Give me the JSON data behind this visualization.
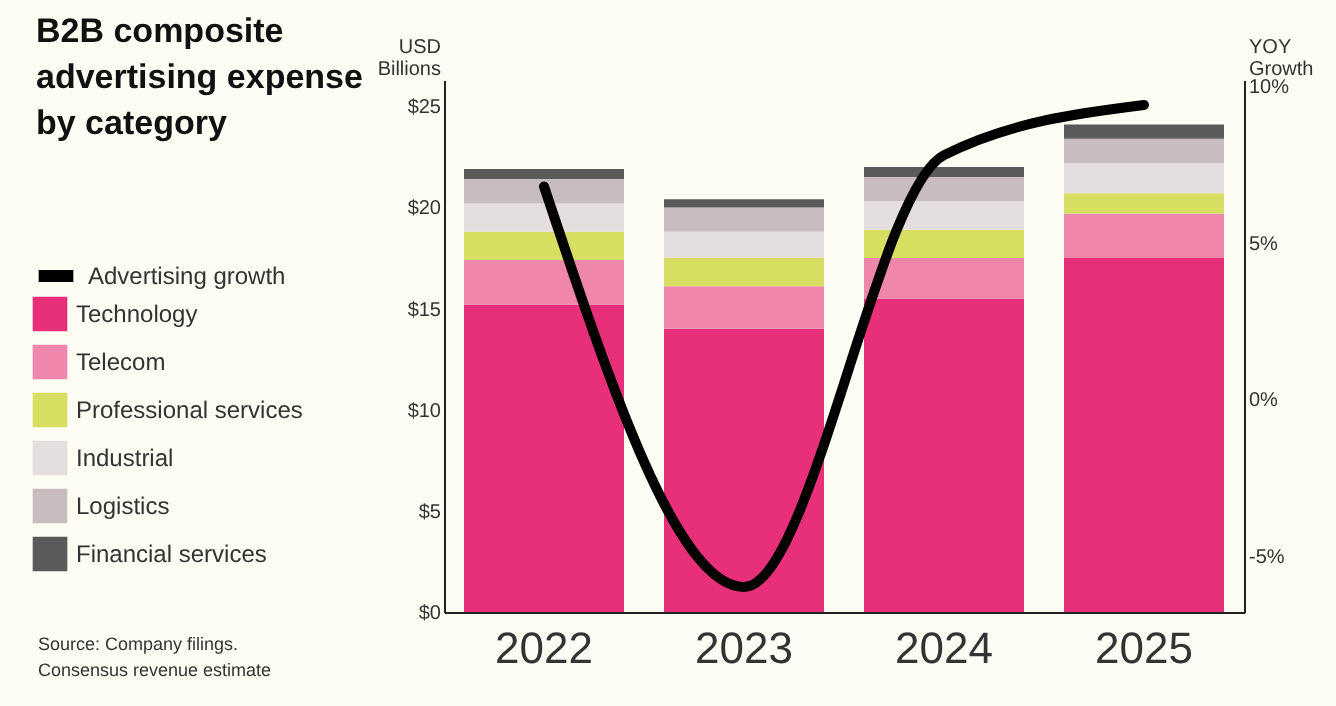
{
  "chart_data": {
    "type": "bar",
    "title": [
      "B2B composite",
      "advertising expense",
      "by category"
    ],
    "ylabel": [
      "USD",
      "Billions"
    ],
    "y2label": [
      "YOY",
      "Growth"
    ],
    "categories": [
      "2022",
      "2023",
      "2024",
      "2025"
    ],
    "stacked": true,
    "legend": "left",
    "marker": "none",
    "grid": false,
    "ylim": [
      0,
      26.3
    ],
    "yticks": [
      {
        "value": 0,
        "label": "$0"
      },
      {
        "value": 5,
        "label": "$5"
      },
      {
        "value": 10,
        "label": "$10"
      },
      {
        "value": 15,
        "label": "$15"
      },
      {
        "value": 20,
        "label": "$20"
      },
      {
        "value": 25,
        "label": "$25"
      }
    ],
    "y2lim": [
      -6.8,
      10.2
    ],
    "y2ticks": [
      {
        "value": -5,
        "label": "-5%"
      },
      {
        "value": 0,
        "label": "0%"
      },
      {
        "value": 5,
        "label": "5%"
      },
      {
        "value": 10,
        "label": "10%"
      }
    ],
    "series": [
      {
        "name": "Technology",
        "color": "#e8307a",
        "values": [
          15.2,
          14.0,
          15.5,
          17.5
        ]
      },
      {
        "name": "Telecom",
        "color": "#ef86ac",
        "values": [
          2.2,
          2.1,
          2.0,
          2.2
        ]
      },
      {
        "name": "Professional services",
        "color": "#d8de62",
        "values": [
          1.4,
          1.4,
          1.4,
          1.0
        ]
      },
      {
        "name": "Industrial",
        "color": "#e4dede",
        "values": [
          1.4,
          1.3,
          1.4,
          1.5
        ]
      },
      {
        "name": "Logistics",
        "color": "#c8bcbe",
        "values": [
          1.2,
          1.2,
          1.2,
          1.2
        ]
      },
      {
        "name": "Financial services",
        "color": "#5a5a5a",
        "values": [
          0.5,
          0.4,
          0.5,
          0.7
        ]
      },
      {
        "name": "Advertising growth",
        "type": "line",
        "axis": "y2",
        "color": "#000000",
        "values": [
          6.8,
          -6.0,
          7.8,
          9.4
        ]
      }
    ],
    "annotations": [
      "Source: Company filings.",
      "Consensus revenue estimate"
    ]
  }
}
